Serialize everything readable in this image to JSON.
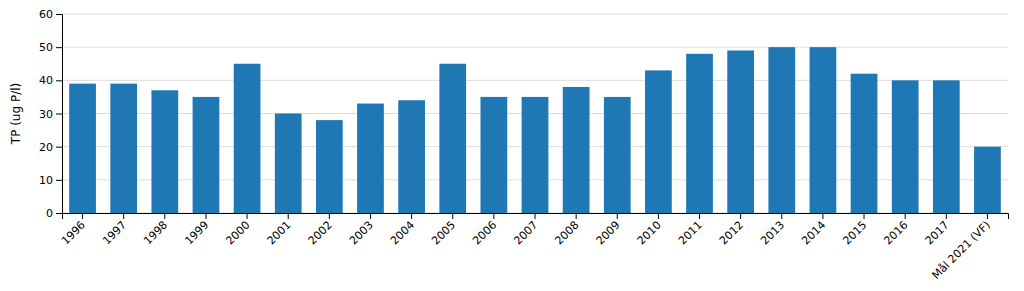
{
  "chart_data": {
    "type": "bar",
    "categories": [
      "1996",
      "1997",
      "1998",
      "1999",
      "2000",
      "2001",
      "2002",
      "2003",
      "2004",
      "2005",
      "2006",
      "2007",
      "2008",
      "2009",
      "2010",
      "2011",
      "2012",
      "2013",
      "2014",
      "2015",
      "2016",
      "2017",
      "Mål 2021 (VF)"
    ],
    "values": [
      39,
      39,
      37,
      35,
      45,
      30,
      28,
      33,
      34,
      45,
      35,
      35,
      38,
      35,
      43,
      48,
      49,
      50,
      50,
      42,
      40,
      40,
      20
    ],
    "y_label": "TP (ug P/l)",
    "ylim": [
      0,
      60
    ],
    "yticks": [
      0,
      10,
      20,
      30,
      40,
      50,
      60
    ],
    "grid": true
  }
}
